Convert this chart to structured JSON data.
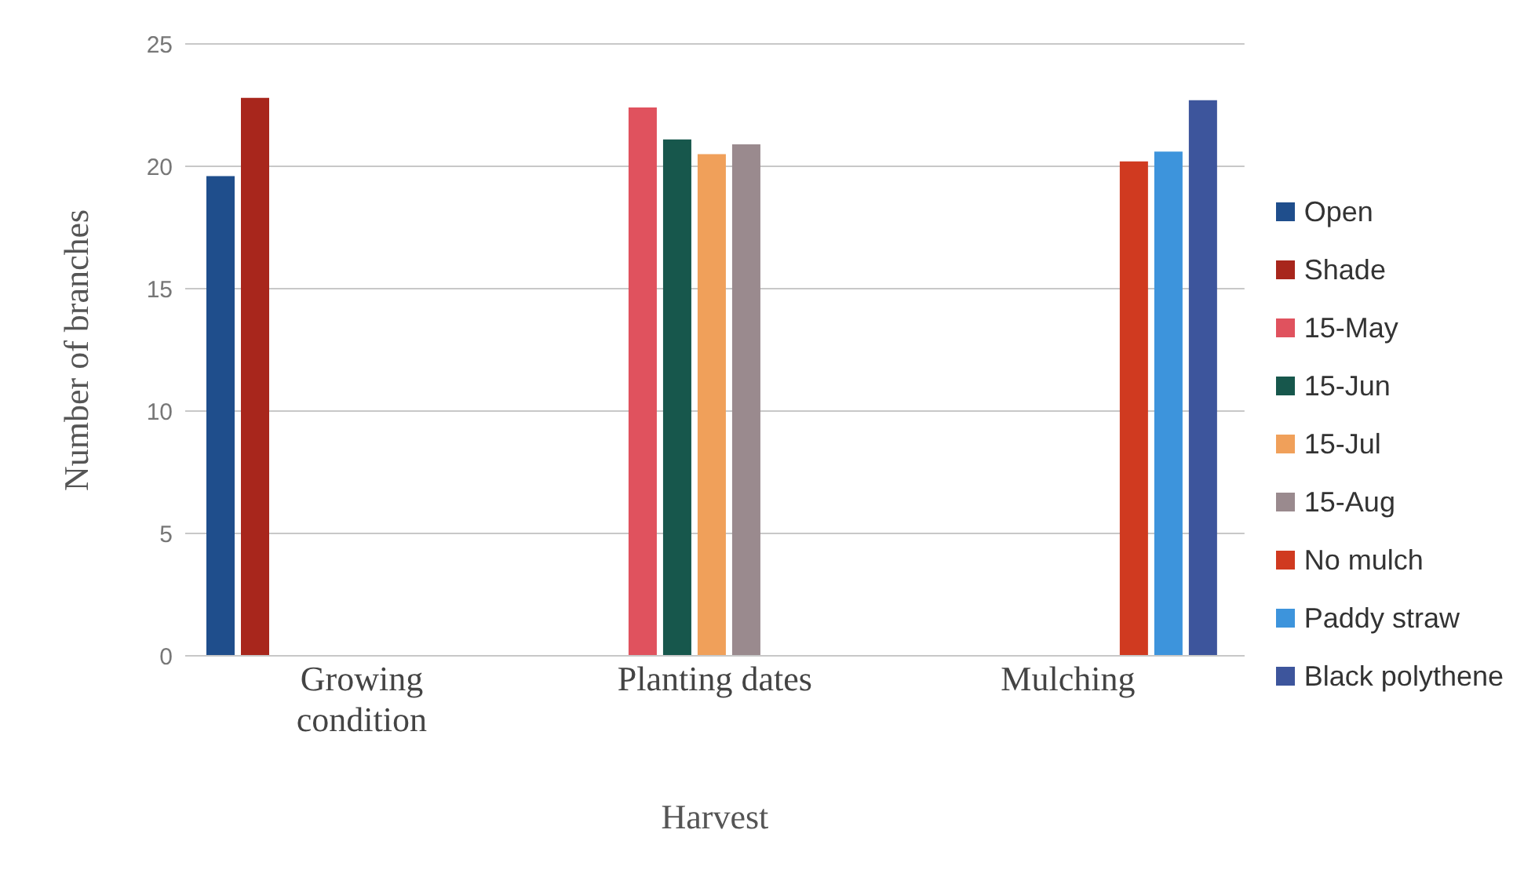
{
  "chart_data": {
    "type": "bar",
    "xlabel": "Harvest",
    "ylabel": "Number of branches",
    "categories": [
      "Growing condition",
      "Planting dates",
      "Mulching"
    ],
    "series": [
      {
        "name": "Open",
        "color": "#1f4e8c",
        "values": [
          19.6,
          null,
          null
        ]
      },
      {
        "name": "Shade",
        "color": "#a8261c",
        "values": [
          22.8,
          null,
          null
        ]
      },
      {
        "name": "15-May",
        "color": "#e0525e",
        "values": [
          null,
          22.4,
          null
        ]
      },
      {
        "name": "15-Jun",
        "color": "#17574c",
        "values": [
          null,
          21.1,
          null
        ]
      },
      {
        "name": "15-Jul",
        "color": "#f0a05a",
        "values": [
          null,
          20.5,
          null
        ]
      },
      {
        "name": "15-Aug",
        "color": "#9a8a8e",
        "values": [
          null,
          20.9,
          null
        ]
      },
      {
        "name": "No mulch",
        "color": "#d03a20",
        "values": [
          null,
          null,
          20.2
        ]
      },
      {
        "name": "Paddy straw",
        "color": "#3d94dc",
        "values": [
          null,
          null,
          20.6
        ]
      },
      {
        "name": "Black polythene",
        "color": "#3d559c",
        "values": [
          null,
          null,
          22.7
        ]
      }
    ],
    "ylim": [
      0,
      25
    ],
    "yticks": [
      0,
      5,
      10,
      15,
      20,
      25
    ],
    "grid": "y",
    "legend": "right"
  }
}
